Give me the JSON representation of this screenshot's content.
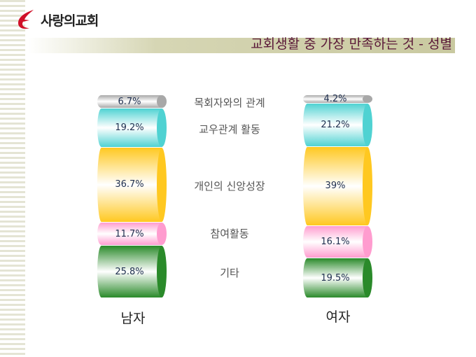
{
  "header": {
    "logo_text": "사랑의교회",
    "title": "교회생활 중 가장 만족하는 것 - 성별"
  },
  "chart_data": {
    "type": "bar",
    "stacked": true,
    "title": "교회생활 중 가장 만족하는 것 - 성별",
    "categories": [
      "목회자와의 관계",
      "교우관계 활동",
      "개인의 신앙성장",
      "참여활동",
      "기타"
    ],
    "colors": [
      "#a8a8a8",
      "#4fd2d2",
      "#ffc820",
      "#ff9ccf",
      "#2a8a2a"
    ],
    "series": [
      {
        "name": "남자",
        "values": [
          6.7,
          19.2,
          36.7,
          11.7,
          25.8
        ],
        "labels": [
          "6.7%",
          "19.2%",
          "36.7%",
          "11.7%",
          "25.8%"
        ]
      },
      {
        "name": "여자",
        "values": [
          4.2,
          21.2,
          39,
          16.1,
          19.5
        ],
        "labels": [
          "4.2%",
          "21.2%",
          "39%",
          "16.1%",
          "19.5%"
        ]
      }
    ]
  }
}
